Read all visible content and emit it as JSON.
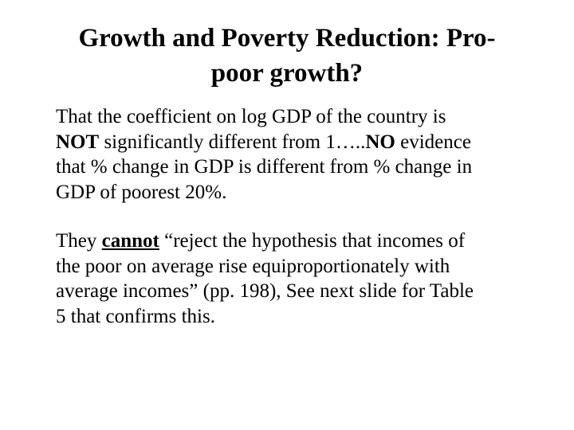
{
  "slide": {
    "title_lines": [
      "Growth and Poverty Reduction: Pro-",
      "poor growth?"
    ],
    "paragraph1": {
      "line1": "That the coefficient on log GDP of the country is",
      "line2_bold": "NOT",
      "line2_mid": " significantly different from 1…..",
      "line2_bold2": "NO",
      "line2_end": " evidence",
      "line3": "that % change in GDP is different from % change in",
      "line4": "GDP of poorest 20%."
    },
    "paragraph2": {
      "line1_start": "They ",
      "line1_underlined": "cannot",
      "line1_end": " “reject the hypothesis that incomes of",
      "line2": "the poor on average rise equiproportionately with",
      "line3": "average incomes” (pp. 198), See next slide for Table",
      "line4": "5 that confirms this."
    }
  }
}
